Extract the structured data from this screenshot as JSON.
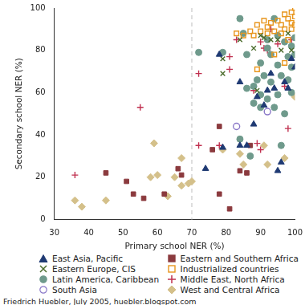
{
  "chart_data": {
    "type": "scatter",
    "x_label": "Primary school NER (%)",
    "y_label": "Secondary school NER (%)",
    "xlim": [
      30,
      100
    ],
    "xticks": [
      30,
      40,
      50,
      60,
      70,
      80,
      90,
      100
    ],
    "ylim": [
      0,
      100
    ],
    "yticks": [
      0,
      20,
      40,
      60,
      80,
      100
    ],
    "grid": false,
    "legend": "bottom",
    "reference_x": 70,
    "caption": "Friedrich Huebler, July 2005, huebler.blogspot.com",
    "series": [
      {
        "name": "East Asia, Pacific",
        "color": "#1f3a73",
        "marker": "triangle",
        "values": [
          [
            74,
            24
          ],
          [
            78,
            78
          ],
          [
            79,
            34
          ],
          [
            84,
            65
          ],
          [
            84,
            35
          ],
          [
            86,
            35
          ],
          [
            88,
            45
          ],
          [
            89,
            58
          ],
          [
            91,
            54
          ],
          [
            92,
            61
          ],
          [
            93,
            69
          ],
          [
            94,
            62
          ],
          [
            95,
            23
          ],
          [
            96,
            27
          ],
          [
            97,
            65
          ],
          [
            98,
            62
          ],
          [
            99,
            76
          ],
          [
            100,
            72
          ]
        ]
      },
      {
        "name": "Eastern and Southern Africa",
        "color": "#8b3a3e",
        "marker": "square",
        "values": [
          [
            45,
            22
          ],
          [
            51,
            18
          ],
          [
            53,
            12
          ],
          [
            56,
            10
          ],
          [
            62,
            12
          ],
          [
            66,
            24
          ],
          [
            67,
            21
          ],
          [
            76,
            33
          ],
          [
            78,
            44
          ],
          [
            78,
            12
          ],
          [
            81,
            5
          ],
          [
            84,
            23
          ],
          [
            86,
            22
          ],
          [
            87,
            35
          ]
        ]
      },
      {
        "name": "Eastern Europe, CIS",
        "color": "#4a6b2b",
        "marker": "x",
        "values": [
          [
            79,
            76
          ],
          [
            79,
            69
          ],
          [
            89,
            61
          ],
          [
            84,
            85
          ],
          [
            88,
            81
          ],
          [
            90,
            87
          ],
          [
            91,
            86
          ],
          [
            93,
            85
          ],
          [
            95,
            85
          ],
          [
            96,
            80
          ],
          [
            98,
            88
          ],
          [
            99,
            80
          ]
        ]
      },
      {
        "name": "Industrialized countries",
        "color": "#e8961e",
        "marker": "open square",
        "values": [
          [
            83,
            88
          ],
          [
            85,
            87
          ],
          [
            87,
            89
          ],
          [
            88,
            87
          ],
          [
            89,
            92
          ],
          [
            89,
            71
          ],
          [
            90,
            89
          ],
          [
            91,
            94
          ],
          [
            92,
            91
          ],
          [
            92,
            88
          ],
          [
            93,
            93
          ],
          [
            94,
            89
          ],
          [
            94,
            78
          ],
          [
            95,
            94
          ],
          [
            96,
            92
          ],
          [
            96,
            88
          ],
          [
            97,
            90
          ],
          [
            97,
            97
          ],
          [
            97,
            74
          ],
          [
            98,
            95
          ],
          [
            98,
            85
          ],
          [
            99,
            90
          ],
          [
            99,
            98
          ],
          [
            99,
            93
          ],
          [
            100,
            100
          ],
          [
            100,
            96
          ],
          [
            100,
            92
          ]
        ]
      },
      {
        "name": "Latin America, Caribbean",
        "color": "#6f9a8c",
        "marker": "circle",
        "values": [
          [
            72,
            79
          ],
          [
            79,
            79
          ],
          [
            84,
            95
          ],
          [
            84,
            38
          ],
          [
            85,
            88
          ],
          [
            86,
            78
          ],
          [
            86,
            62
          ],
          [
            87,
            30
          ],
          [
            88,
            63
          ],
          [
            88,
            55
          ],
          [
            89,
            66
          ],
          [
            90,
            59
          ],
          [
            90,
            53
          ],
          [
            90,
            74
          ],
          [
            91,
            68
          ],
          [
            92,
            81
          ],
          [
            92,
            85
          ],
          [
            92,
            57
          ],
          [
            93,
            65
          ],
          [
            93,
            78
          ],
          [
            94,
            95
          ],
          [
            94,
            53
          ],
          [
            95,
            73
          ],
          [
            95,
            87
          ],
          [
            95,
            59
          ],
          [
            96,
            35
          ],
          [
            96,
            68
          ],
          [
            97,
            50
          ],
          [
            97,
            84
          ],
          [
            98,
            77
          ],
          [
            98,
            66
          ],
          [
            99,
            60
          ],
          [
            99,
            82
          ],
          [
            99,
            72
          ],
          [
            100,
            78
          ],
          [
            100,
            86
          ]
        ]
      },
      {
        "name": "Middle East, North Africa",
        "color": "#c0304f",
        "marker": "plus",
        "values": [
          [
            36,
            21
          ],
          [
            55,
            53
          ],
          [
            72,
            69
          ],
          [
            72,
            35
          ],
          [
            78,
            35
          ],
          [
            81,
            77
          ],
          [
            81,
            71
          ],
          [
            83,
            85
          ],
          [
            88,
            61
          ],
          [
            89,
            36
          ],
          [
            90,
            33
          ],
          [
            90,
            84
          ],
          [
            91,
            81
          ],
          [
            92,
            80
          ],
          [
            93,
            90
          ],
          [
            95,
            83
          ],
          [
            97,
            63
          ],
          [
            98,
            43
          ],
          [
            99,
            85
          ]
        ]
      },
      {
        "name": "South Asia",
        "color": "#8a78c8",
        "marker": "open circle",
        "values": [
          [
            83,
            44
          ],
          [
            92,
            51
          ]
        ]
      },
      {
        "name": "West and Central Africa",
        "color": "#d4c08a",
        "marker": "diamond",
        "values": [
          [
            36,
            9
          ],
          [
            38,
            6
          ],
          [
            45,
            9
          ],
          [
            58,
            20
          ],
          [
            59,
            36
          ],
          [
            60,
            21
          ],
          [
            63,
            11
          ],
          [
            65,
            20
          ],
          [
            67,
            29
          ],
          [
            67,
            16
          ],
          [
            69,
            17
          ],
          [
            70,
            18
          ],
          [
            79,
            33
          ],
          [
            84,
            31
          ],
          [
            85,
            26
          ],
          [
            91,
            35
          ],
          [
            92,
            26
          ],
          [
            97,
            29
          ],
          [
            100,
            58
          ]
        ]
      }
    ]
  }
}
